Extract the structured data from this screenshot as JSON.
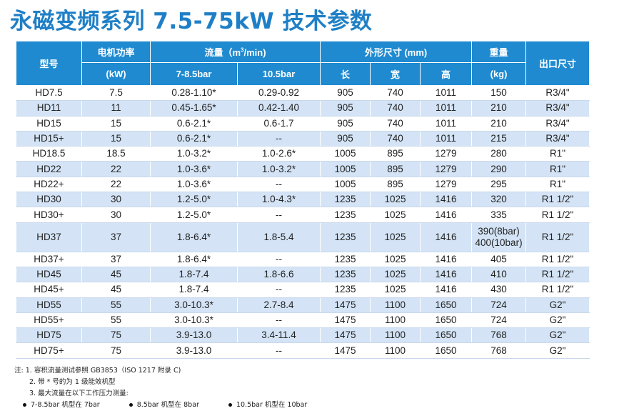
{
  "title": "永磁变频系列 7.5-75kW 技术参数",
  "header": {
    "model": "型号",
    "power": "电机功率",
    "power_unit": "(kW)",
    "flow_prefix": "流量（m",
    "flow_sup": "3",
    "flow_suffix": "/min)",
    "flow_a": "7-8.5bar",
    "flow_b": "10.5bar",
    "dims": "外形尺寸 (mm)",
    "length": "长",
    "width": "宽",
    "height": "高",
    "weight": "重量",
    "weight_unit": "(kg)",
    "outlet": "出口尺寸"
  },
  "rows": [
    {
      "model": "HD7.5",
      "power": "7.5",
      "flow_a": "0.28-1.10*",
      "flow_b": "0.29-0.92",
      "l": "905",
      "w": "740",
      "h": "1011",
      "kg": "150",
      "outlet": "R3/4\""
    },
    {
      "model": "HD11",
      "power": "11",
      "flow_a": "0.45-1.65*",
      "flow_b": "0.42-1.40",
      "l": "905",
      "w": "740",
      "h": "1011",
      "kg": "210",
      "outlet": "R3/4\""
    },
    {
      "model": "HD15",
      "power": "15",
      "flow_a": "0.6-2.1*",
      "flow_b": "0.6-1.7",
      "l": "905",
      "w": "740",
      "h": "1011",
      "kg": "210",
      "outlet": "R3/4\""
    },
    {
      "model": "HD15+",
      "power": "15",
      "flow_a": "0.6-2.1*",
      "flow_b": "--",
      "l": "905",
      "w": "740",
      "h": "1011",
      "kg": "215",
      "outlet": "R3/4\""
    },
    {
      "model": "HD18.5",
      "power": "18.5",
      "flow_a": "1.0-3.2*",
      "flow_b": "1.0-2.6*",
      "l": "1005",
      "w": "895",
      "h": "1279",
      "kg": "280",
      "outlet": "R1\""
    },
    {
      "model": "HD22",
      "power": "22",
      "flow_a": "1.0-3.6*",
      "flow_b": "1.0-3.2*",
      "l": "1005",
      "w": "895",
      "h": "1279",
      "kg": "290",
      "outlet": "R1\""
    },
    {
      "model": "HD22+",
      "power": "22",
      "flow_a": "1.0-3.6*",
      "flow_b": "--",
      "l": "1005",
      "w": "895",
      "h": "1279",
      "kg": "295",
      "outlet": "R1\""
    },
    {
      "model": "HD30",
      "power": "30",
      "flow_a": "1.2-5.0*",
      "flow_b": "1.0-4.3*",
      "l": "1235",
      "w": "1025",
      "h": "1416",
      "kg": "320",
      "outlet": "R1 1/2\""
    },
    {
      "model": "HD30+",
      "power": "30",
      "flow_a": "1.2-5.0*",
      "flow_b": "--",
      "l": "1235",
      "w": "1025",
      "h": "1416",
      "kg": "335",
      "outlet": "R1 1/2\""
    },
    {
      "model": "HD37",
      "power": "37",
      "flow_a": "1.8-6.4*",
      "flow_b": "1.8-5.4",
      "l": "1235",
      "w": "1025",
      "h": "1416",
      "kg": "390(8bar)",
      "kg2": "400(10bar)",
      "outlet": "R1 1/2\""
    },
    {
      "model": "HD37+",
      "power": "37",
      "flow_a": "1.8-6.4*",
      "flow_b": "--",
      "l": "1235",
      "w": "1025",
      "h": "1416",
      "kg": "405",
      "outlet": "R1 1/2\""
    },
    {
      "model": "HD45",
      "power": "45",
      "flow_a": "1.8-7.4",
      "flow_b": "1.8-6.6",
      "l": "1235",
      "w": "1025",
      "h": "1416",
      "kg": "410",
      "outlet": "R1 1/2\""
    },
    {
      "model": "HD45+",
      "power": "45",
      "flow_a": "1.8-7.4",
      "flow_b": "--",
      "l": "1235",
      "w": "1025",
      "h": "1416",
      "kg": "430",
      "outlet": "R1 1/2\""
    },
    {
      "model": "HD55",
      "power": "55",
      "flow_a": "3.0-10.3*",
      "flow_b": "2.7-8.4",
      "l": "1475",
      "w": "1100",
      "h": "1650",
      "kg": "724",
      "outlet": "G2\""
    },
    {
      "model": "HD55+",
      "power": "55",
      "flow_a": "3.0-10.3*",
      "flow_b": "--",
      "l": "1475",
      "w": "1100",
      "h": "1650",
      "kg": "724",
      "outlet": "G2\""
    },
    {
      "model": "HD75",
      "power": "75",
      "flow_a": "3.9-13.0",
      "flow_b": "3.4-11.4",
      "l": "1475",
      "w": "1100",
      "h": "1650",
      "kg": "768",
      "outlet": "G2\""
    },
    {
      "model": "HD75+",
      "power": "75",
      "flow_a": "3.9-13.0",
      "flow_b": "--",
      "l": "1475",
      "w": "1100",
      "h": "1650",
      "kg": "768",
      "outlet": "G2\""
    }
  ],
  "notes": {
    "label": "注:",
    "n1": "1. 容积流量测试参照 GB3853（ISO 1217 附录 C)",
    "n2": "2. 带 * 号的为 1 级能效机型",
    "n3": "3. 最大流量在以下工作压力测量:",
    "b1": "7-8.5bar 机型在 7bar",
    "b2": "8.5bar 机型在 8bar",
    "b3": "10.5bar 机型在 10bar"
  },
  "colors": {
    "title": "#1f7fc6",
    "header_bg": "#1f8ad0",
    "stripe": "#d4e4f6"
  }
}
